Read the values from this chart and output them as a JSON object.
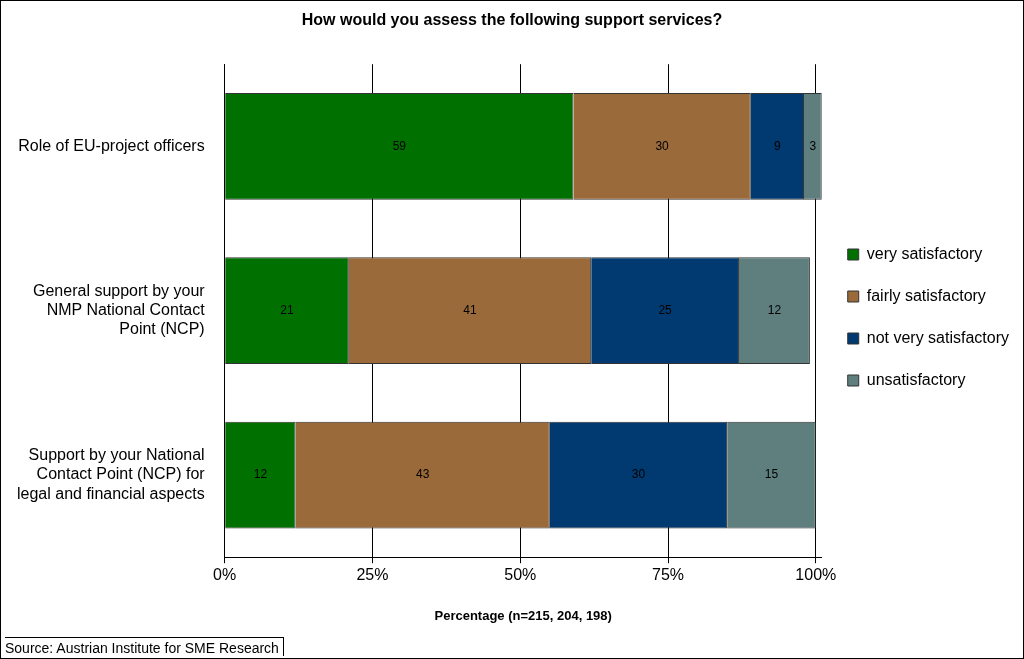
{
  "chart_data": {
    "type": "bar",
    "orientation": "horizontal",
    "stacked": true,
    "title": "How would you assess the following support services?",
    "categories": [
      "Role of EU-project officers",
      "General support by your NMP National Contact Point (NCP)",
      "Support by your National Contact Point (NCP) for legal and financial aspects"
    ],
    "series": [
      {
        "name": "very satisfactory",
        "color": "#007000",
        "values": [
          59,
          21,
          12
        ]
      },
      {
        "name": "fairly satisfactory",
        "color": "#9b6a3a",
        "values": [
          30,
          41,
          43
        ]
      },
      {
        "name": "not very satisfactory",
        "color": "#003a70",
        "values": [
          9,
          25,
          30
        ]
      },
      {
        "name": "unsatisfactory",
        "color": "#5f7f7f",
        "values": [
          3,
          12,
          15
        ]
      }
    ],
    "xlim": [
      0,
      101
    ],
    "xticks": [
      {
        "value": 0,
        "label": "0%"
      },
      {
        "value": 25,
        "label": "25%"
      },
      {
        "value": 50,
        "label": "50%"
      },
      {
        "value": 75,
        "label": "75%"
      },
      {
        "value": 100,
        "label": "100%"
      }
    ],
    "xlabel": "Percentage (n=215, 204, 198)",
    "grid": "x",
    "legend": "right",
    "data_labels": true,
    "annotations": [
      "Source: Austrian Institute for SME Research"
    ]
  }
}
